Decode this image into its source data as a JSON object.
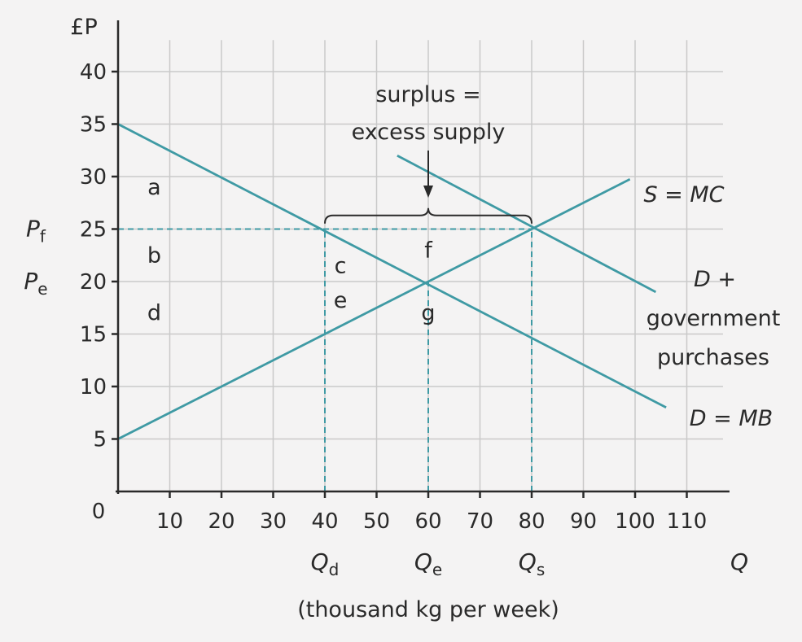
{
  "chart_data": {
    "type": "line",
    "title": "",
    "ylabel": "£P",
    "xlabel": "Q",
    "xlabel_sub": "(thousand kg per week)",
    "origin_label": "0",
    "xlim": [
      0,
      117
    ],
    "ylim": [
      0,
      43
    ],
    "x_ticks": [
      10,
      20,
      30,
      40,
      50,
      60,
      70,
      80,
      90,
      100,
      110
    ],
    "y_ticks": [
      5,
      10,
      15,
      20,
      25,
      30,
      35,
      40
    ],
    "grid": true,
    "series": [
      {
        "name": "D = MB",
        "x": [
          0,
          106
        ],
        "y": [
          35,
          8
        ]
      },
      {
        "name": "S = MC",
        "x": [
          0,
          99
        ],
        "y": [
          5,
          29.75
        ]
      },
      {
        "name": "D + government purchases",
        "x": [
          54,
          104
        ],
        "y": [
          32,
          19
        ]
      }
    ],
    "label_text": {
      "D = MB": "D = MB",
      "S = MC": "S = MC",
      "D_gov_line1": "D +",
      "D_gov_line2": "government",
      "D_gov_line3": "purchases"
    },
    "price_labels": [
      {
        "main": "P",
        "sub": "f",
        "y": 25
      },
      {
        "main": "P",
        "sub": "e",
        "y": 20
      }
    ],
    "quantity_labels": [
      {
        "main": "Q",
        "sub": "d",
        "x": 40
      },
      {
        "main": "Q",
        "sub": "e",
        "x": 60
      },
      {
        "main": "Q",
        "sub": "s",
        "x": 80
      }
    ],
    "dashed_guides": [
      {
        "from": [
          0,
          25
        ],
        "to": [
          80,
          25
        ]
      },
      {
        "from": [
          40,
          0
        ],
        "to": [
          40,
          25
        ]
      },
      {
        "from": [
          60,
          0
        ],
        "to": [
          60,
          20
        ]
      },
      {
        "from": [
          80,
          0
        ],
        "to": [
          80,
          25
        ]
      }
    ],
    "region_labels": [
      {
        "text": "a",
        "x": 7,
        "y": 29
      },
      {
        "text": "b",
        "x": 7,
        "y": 22.5
      },
      {
        "text": "d",
        "x": 7,
        "y": 17
      },
      {
        "text": "c",
        "x": 43,
        "y": 21.5
      },
      {
        "text": "e",
        "x": 43,
        "y": 18.2
      },
      {
        "text": "f",
        "x": 60,
        "y": 23
      },
      {
        "text": "g",
        "x": 60,
        "y": 17
      }
    ],
    "surplus_annotation": {
      "line1": "surplus =",
      "line2": "excess supply",
      "brace_x_range": [
        40,
        80
      ],
      "brace_y": 26.3
    }
  }
}
